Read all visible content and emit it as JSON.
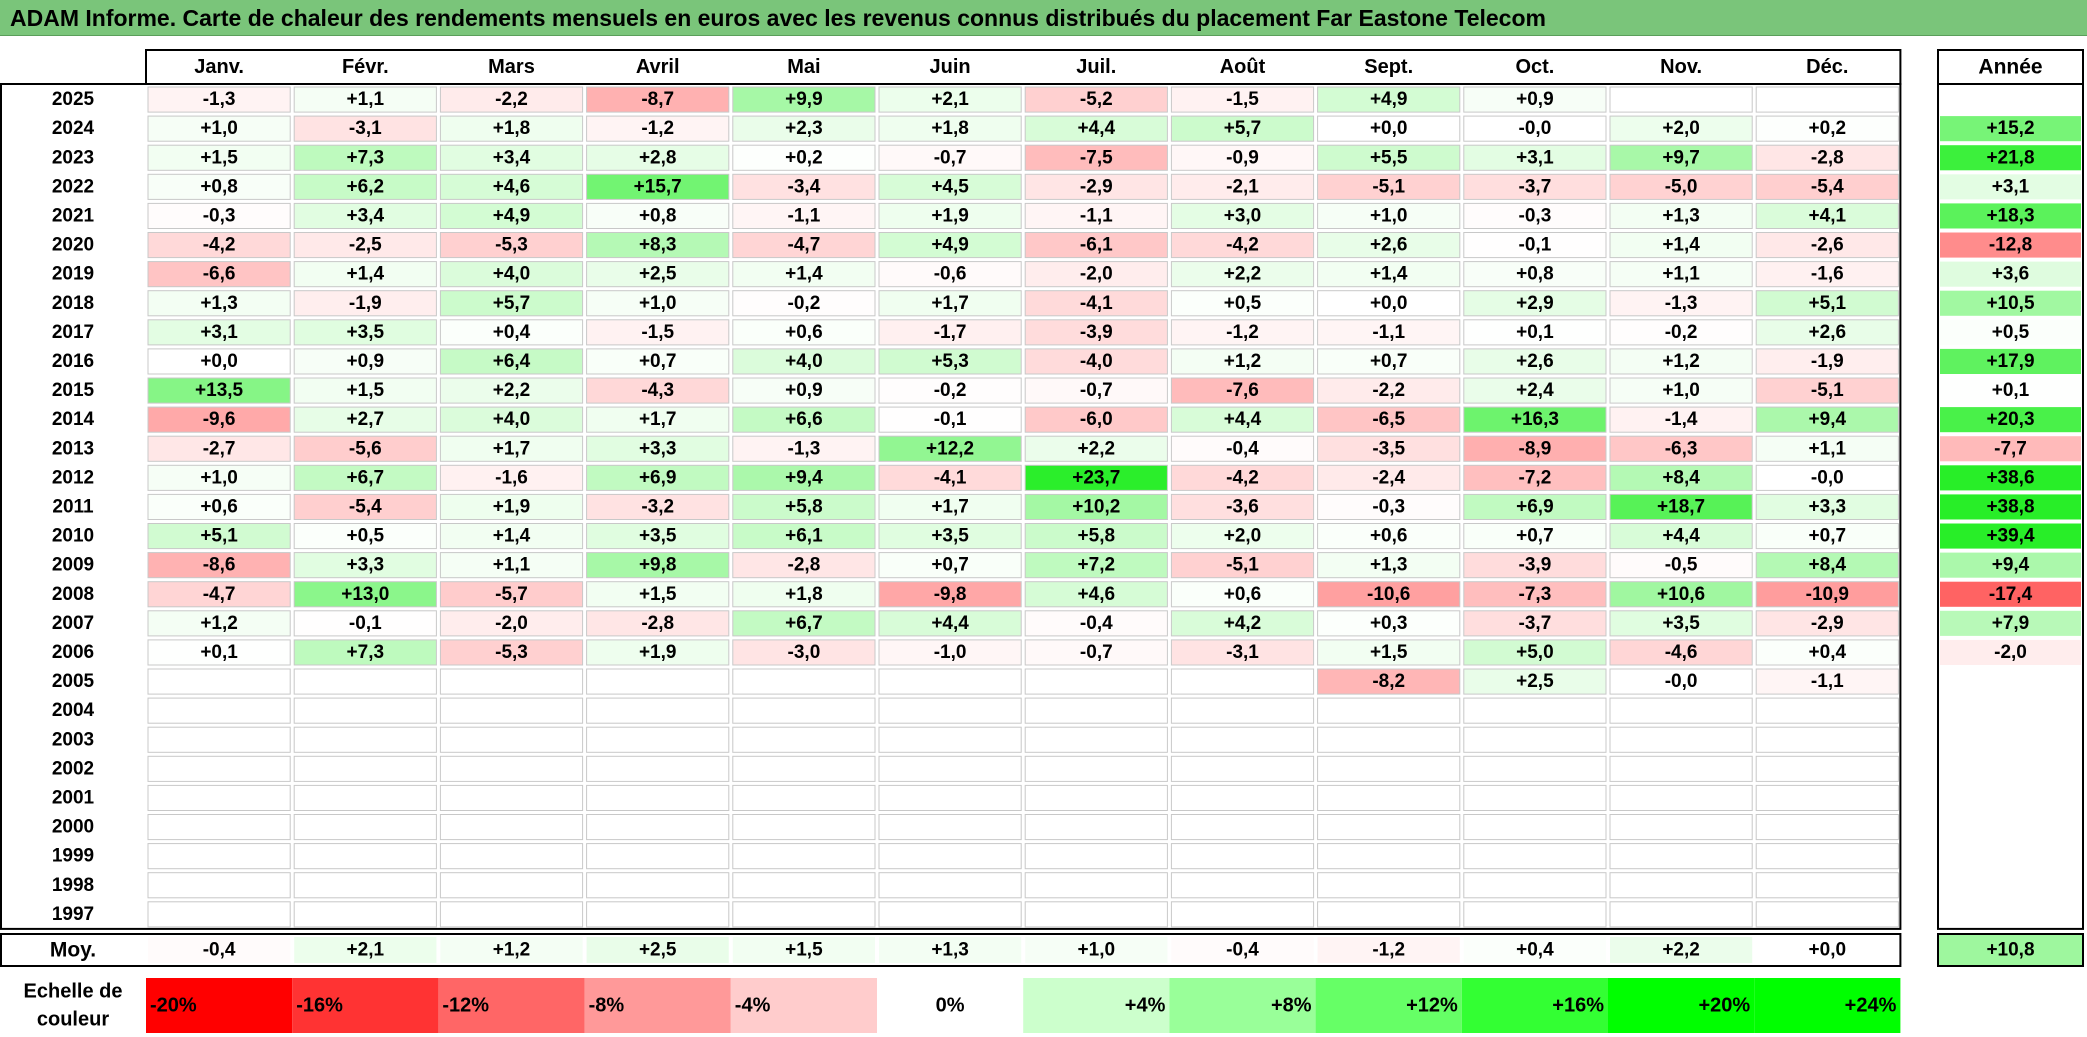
{
  "title": "ADAM Informe. Carte de chaleur des rendements mensuels en euros avec les revenus connus distribués du placement Far Eastone Telecom",
  "chart_data": {
    "type": "heatmap",
    "title": "ADAM Informe. Carte de chaleur des rendements mensuels en euros avec les revenus connus distribués du placement Far Eastone Telecom",
    "months": [
      "Janv.",
      "Févr.",
      "Mars",
      "Avril",
      "Mai",
      "Juin",
      "Juil.",
      "Août",
      "Sept.",
      "Oct.",
      "Nov.",
      "Déc."
    ],
    "annual_label": "Année",
    "years": [
      "2025",
      "2024",
      "2023",
      "2022",
      "2021",
      "2020",
      "2019",
      "2018",
      "2017",
      "2016",
      "2015",
      "2014",
      "2013",
      "2012",
      "2011",
      "2010",
      "2009",
      "2008",
      "2007",
      "2006",
      "2005",
      "2004",
      "2003",
      "2002",
      "2001",
      "2000",
      "1999",
      "1998",
      "1997"
    ],
    "values": [
      [
        "-1,3",
        "+1,1",
        "-2,2",
        "-8,7",
        "+9,9",
        "+2,1",
        "-5,2",
        "-1,5",
        "+4,9",
        "+0,9",
        "",
        ""
      ],
      [
        "+1,0",
        "-3,1",
        "+1,8",
        "-1,2",
        "+2,3",
        "+1,8",
        "+4,4",
        "+5,7",
        "+0,0",
        "-0,0",
        "+2,0",
        "+0,2"
      ],
      [
        "+1,5",
        "+7,3",
        "+3,4",
        "+2,8",
        "+0,2",
        "-0,7",
        "-7,5",
        "-0,9",
        "+5,5",
        "+3,1",
        "+9,7",
        "-2,8"
      ],
      [
        "+0,8",
        "+6,2",
        "+4,6",
        "+15,7",
        "-3,4",
        "+4,5",
        "-2,9",
        "-2,1",
        "-5,1",
        "-3,7",
        "-5,0",
        "-5,4"
      ],
      [
        "-0,3",
        "+3,4",
        "+4,9",
        "+0,8",
        "-1,1",
        "+1,9",
        "-1,1",
        "+3,0",
        "+1,0",
        "-0,3",
        "+1,3",
        "+4,1"
      ],
      [
        "-4,2",
        "-2,5",
        "-5,3",
        "+8,3",
        "-4,7",
        "+4,9",
        "-6,1",
        "-4,2",
        "+2,6",
        "-0,1",
        "+1,4",
        "-2,6"
      ],
      [
        "-6,6",
        "+1,4",
        "+4,0",
        "+2,5",
        "+1,4",
        "-0,6",
        "-2,0",
        "+2,2",
        "+1,4",
        "+0,8",
        "+1,1",
        "-1,6"
      ],
      [
        "+1,3",
        "-1,9",
        "+5,7",
        "+1,0",
        "-0,2",
        "+1,7",
        "-4,1",
        "+0,5",
        "+0,0",
        "+2,9",
        "-1,3",
        "+5,1"
      ],
      [
        "+3,1",
        "+3,5",
        "+0,4",
        "-1,5",
        "+0,6",
        "-1,7",
        "-3,9",
        "-1,2",
        "-1,1",
        "+0,1",
        "-0,2",
        "+2,6"
      ],
      [
        "+0,0",
        "+0,9",
        "+6,4",
        "+0,7",
        "+4,0",
        "+5,3",
        "-4,0",
        "+1,2",
        "+0,7",
        "+2,6",
        "+1,2",
        "-1,9"
      ],
      [
        "+13,5",
        "+1,5",
        "+2,2",
        "-4,3",
        "+0,9",
        "-0,2",
        "-0,7",
        "-7,6",
        "-2,2",
        "+2,4",
        "+1,0",
        "-5,1"
      ],
      [
        "-9,6",
        "+2,7",
        "+4,0",
        "+1,7",
        "+6,6",
        "-0,1",
        "-6,0",
        "+4,4",
        "-6,5",
        "+16,3",
        "-1,4",
        "+9,4"
      ],
      [
        "-2,7",
        "-5,6",
        "+1,7",
        "+3,3",
        "-1,3",
        "+12,2",
        "+2,2",
        "-0,4",
        "-3,5",
        "-8,9",
        "-6,3",
        "+1,1"
      ],
      [
        "+1,0",
        "+6,7",
        "-1,6",
        "+6,9",
        "+9,4",
        "-4,1",
        "+23,7",
        "-4,2",
        "-2,4",
        "-7,2",
        "+8,4",
        "-0,0"
      ],
      [
        "+0,6",
        "-5,4",
        "+1,9",
        "-3,2",
        "+5,8",
        "+1,7",
        "+10,2",
        "-3,6",
        "-0,3",
        "+6,9",
        "+18,7",
        "+3,3"
      ],
      [
        "+5,1",
        "+0,5",
        "+1,4",
        "+3,5",
        "+6,1",
        "+3,5",
        "+5,8",
        "+2,0",
        "+0,6",
        "+0,7",
        "+4,4",
        "+0,7"
      ],
      [
        "-8,6",
        "+3,3",
        "+1,1",
        "+9,8",
        "-2,8",
        "+0,7",
        "+7,2",
        "-5,1",
        "+1,3",
        "-3,9",
        "-0,5",
        "+8,4"
      ],
      [
        "-4,7",
        "+13,0",
        "-5,7",
        "+1,5",
        "+1,8",
        "-9,8",
        "+4,6",
        "+0,6",
        "-10,6",
        "-7,3",
        "+10,6",
        "-10,9"
      ],
      [
        "+1,2",
        "-0,1",
        "-2,0",
        "-2,8",
        "+6,7",
        "+4,4",
        "-0,4",
        "+4,2",
        "+0,3",
        "-3,7",
        "+3,5",
        "-2,9"
      ],
      [
        "+0,1",
        "+7,3",
        "-5,3",
        "+1,9",
        "-3,0",
        "-1,0",
        "-0,7",
        "-3,1",
        "+1,5",
        "+5,0",
        "-4,6",
        "+0,4"
      ],
      [
        "",
        "",
        "",
        "",
        "",
        "",
        "",
        "",
        "-8,2",
        "+2,5",
        "-0,0",
        "-1,1"
      ],
      [
        "",
        "",
        "",
        "",
        "",
        "",
        "",
        "",
        "",
        "",
        "",
        ""
      ],
      [
        "",
        "",
        "",
        "",
        "",
        "",
        "",
        "",
        "",
        "",
        "",
        ""
      ],
      [
        "",
        "",
        "",
        "",
        "",
        "",
        "",
        "",
        "",
        "",
        "",
        ""
      ],
      [
        "",
        "",
        "",
        "",
        "",
        "",
        "",
        "",
        "",
        "",
        "",
        ""
      ],
      [
        "",
        "",
        "",
        "",
        "",
        "",
        "",
        "",
        "",
        "",
        "",
        ""
      ],
      [
        "",
        "",
        "",
        "",
        "",
        "",
        "",
        "",
        "",
        "",
        "",
        ""
      ],
      [
        "",
        "",
        "",
        "",
        "",
        "",
        "",
        "",
        "",
        "",
        "",
        ""
      ],
      [
        "",
        "",
        "",
        "",
        "",
        "",
        "",
        "",
        "",
        "",
        "",
        ""
      ]
    ],
    "annual": [
      "",
      "+15,2",
      "+21,8",
      "+3,1",
      "+18,3",
      "-12,8",
      "+3,6",
      "+10,5",
      "+0,5",
      "+17,9",
      "+0,1",
      "+20,3",
      "-7,7",
      "+38,6",
      "+38,8",
      "+39,4",
      "+9,4",
      "-17,4",
      "+7,9",
      "-2,0",
      "",
      "",
      "",
      "",
      "",
      "",
      "",
      "",
      ""
    ],
    "average_label": "Moy.",
    "averages": [
      "-0,4",
      "+2,1",
      "+1,2",
      "+2,5",
      "+1,5",
      "+1,3",
      "+1,0",
      "-0,4",
      "-1,2",
      "+0,4",
      "+2,2",
      "+0,0"
    ],
    "average_annual": "+10,8",
    "scale_label": "Echelle de couleur",
    "scale_lines": [
      "Echelle de",
      "couleur"
    ],
    "scale": [
      "-20%",
      "-16%",
      "-12%",
      "-8%",
      "-4%",
      "0%",
      "+4%",
      "+8%",
      "+12%",
      "+16%",
      "+20%",
      "+24%"
    ],
    "scale_colors": [
      "#ff0000",
      "#ff3333",
      "#ff6666",
      "#ff9999",
      "#ffcccc",
      "#ffffff",
      "#ccffcc",
      "#99ff99",
      "#66ff66",
      "#33ff33",
      "#00ff00",
      "#00ff00"
    ],
    "colors": {
      "negative": "#ff0000",
      "positive": "#00ee00",
      "neutral": "#ffffff",
      "title_band": "#7ac57a"
    }
  }
}
